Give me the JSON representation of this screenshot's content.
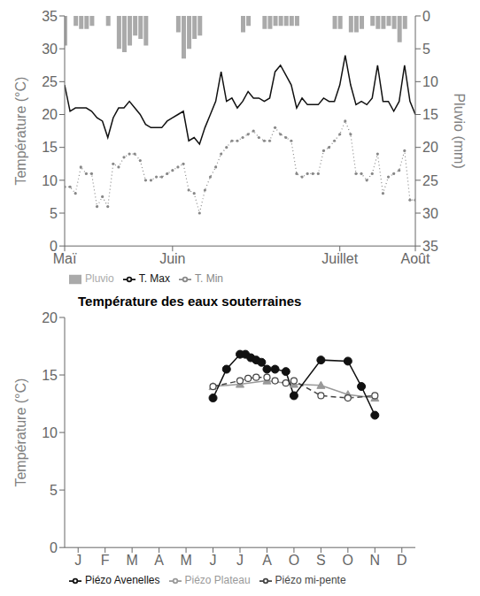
{
  "chart_data": [
    {
      "type": "line",
      "ylabel": "Température (°C)",
      "y2label": "Pluvio (mm)",
      "x": [
        0,
        1,
        2,
        3,
        4,
        5,
        6,
        7,
        8,
        9,
        10,
        11,
        12,
        13,
        14,
        15,
        16,
        17,
        18,
        19,
        20,
        21,
        22,
        23,
        24,
        25,
        26,
        27,
        28,
        29,
        30,
        31,
        32,
        33,
        34,
        35,
        36,
        37,
        38,
        39,
        40,
        41,
        42,
        43,
        44,
        45,
        46,
        47,
        48,
        49,
        50,
        51,
        52,
        53,
        54,
        55,
        56,
        57,
        58,
        59,
        60,
        61,
        62,
        63,
        64,
        65
      ],
      "xlim": [
        0,
        65
      ],
      "xticks": [
        {
          "value": 0,
          "label": "Maï"
        },
        {
          "value": 20,
          "label": "Juin"
        },
        {
          "value": 51,
          "label": "Juillet"
        },
        {
          "value": 65,
          "label": "Août"
        }
      ],
      "ylim": [
        0,
        35
      ],
      "yticks": [
        0,
        5,
        10,
        15,
        20,
        25,
        30,
        35
      ],
      "y2lim": [
        35,
        0
      ],
      "y2ticks": [
        0,
        5,
        10,
        15,
        20,
        25,
        30,
        35
      ],
      "grid": false,
      "legend": "lower left",
      "series": [
        {
          "name": "Pluvio",
          "type": "bar",
          "axis": "y2",
          "color": "#aaaaaa",
          "values": [
            4.5,
            null,
            1.5,
            2.0,
            2.0,
            1.5,
            null,
            null,
            1.5,
            null,
            5.0,
            5.5,
            4.5,
            3.0,
            3.5,
            4.5,
            null,
            null,
            null,
            null,
            null,
            2.5,
            6.5,
            5.0,
            3.5,
            3.0,
            null,
            null,
            null,
            null,
            null,
            null,
            null,
            2.5,
            1.5,
            null,
            null,
            2.0,
            2.0,
            1.5,
            1.5,
            1.5,
            1.5,
            1.5,
            null,
            null,
            null,
            null,
            null,
            null,
            2.0,
            2.0,
            null,
            2.5,
            2.5,
            2.0,
            null,
            1.5,
            2.0,
            2.0,
            1.5,
            2.0,
            4.0,
            2.0,
            null,
            null
          ]
        },
        {
          "name": "T. Min",
          "type": "line",
          "color": "#888888",
          "line_style": "dotted",
          "marker": "dot",
          "values": [
            9.0,
            9.0,
            8.0,
            12.0,
            11.0,
            11.0,
            6.0,
            7.5,
            6.0,
            12.5,
            12.0,
            13.5,
            14.0,
            14.0,
            13.0,
            10.0,
            10.0,
            10.5,
            10.5,
            11.0,
            11.5,
            12.0,
            12.5,
            8.5,
            8.0,
            5.0,
            8.5,
            10.5,
            12.0,
            14.0,
            15.0,
            16.0,
            16.0,
            16.5,
            17.0,
            17.5,
            16.5,
            16.0,
            16.0,
            18.0,
            17.0,
            16.5,
            16.0,
            11.0,
            10.5,
            11.0,
            11.0,
            11.0,
            14.5,
            15.0,
            16.0,
            17.0,
            19.0,
            17.0,
            11.0,
            11.0,
            10.0,
            11.0,
            14.0,
            8.0,
            10.5,
            11.0,
            11.5,
            14.5,
            7.0,
            7.0
          ]
        },
        {
          "name": "T. Max",
          "type": "line",
          "color": "#111111",
          "line_style": "solid",
          "marker": "none",
          "values": [
            24.5,
            20.5,
            21.0,
            21.0,
            21.0,
            20.5,
            19.5,
            19.0,
            16.5,
            19.5,
            21.0,
            21.0,
            22.0,
            21.0,
            20.0,
            18.5,
            18.0,
            18.0,
            18.0,
            19.0,
            19.5,
            20.0,
            20.5,
            16.0,
            16.5,
            15.5,
            18.0,
            20.0,
            22.0,
            26.5,
            22.0,
            22.5,
            21.0,
            22.0,
            23.5,
            22.5,
            22.5,
            22.0,
            22.5,
            26.5,
            27.5,
            26.0,
            24.5,
            21.0,
            22.5,
            21.5,
            21.5,
            21.5,
            22.5,
            22.0,
            22.0,
            24.5,
            29.0,
            24.5,
            21.5,
            22.0,
            21.5,
            22.5,
            27.5,
            22.0,
            22.0,
            20.5,
            22.0,
            27.5,
            22.0,
            20.0
          ]
        }
      ]
    },
    {
      "type": "line",
      "title": "Température des eaux souterraines",
      "ylabel": "Température (°C)",
      "xlim": [
        -0.5,
        12.5
      ],
      "xticks": [
        {
          "value": 0,
          "label": "J"
        },
        {
          "value": 1,
          "label": "F"
        },
        {
          "value": 2,
          "label": "M"
        },
        {
          "value": 3,
          "label": "A"
        },
        {
          "value": 4,
          "label": "M"
        },
        {
          "value": 5,
          "label": "J"
        },
        {
          "value": 6,
          "label": "J"
        },
        {
          "value": 7,
          "label": "A"
        },
        {
          "value": 8,
          "label": "O"
        },
        {
          "value": 9,
          "label": "S"
        },
        {
          "value": 10,
          "label": "O"
        },
        {
          "value": 11,
          "label": "N"
        },
        {
          "value": 12,
          "label": "D"
        }
      ],
      "ylim": [
        0,
        20
      ],
      "yticks": [
        0,
        5,
        10,
        15,
        20
      ],
      "grid": false,
      "legend": "lower left",
      "series": [
        {
          "name": "Piézo Plateau",
          "color": "#999999",
          "line_style": "solid",
          "marker": "triangle",
          "x": [
            5,
            6,
            7,
            8,
            9,
            10,
            11
          ],
          "values": [
            14.0,
            14.2,
            14.5,
            14.2,
            14.1,
            13.3,
            13.0
          ]
        },
        {
          "name": "Piézo mi-pente",
          "color": "#444444",
          "line_style": "dashed",
          "marker": "open-circle",
          "x": [
            5,
            6,
            6.3,
            6.6,
            7,
            7.3,
            7.7,
            8,
            9,
            10,
            11
          ],
          "values": [
            14.0,
            14.5,
            14.7,
            14.8,
            14.8,
            14.5,
            14.3,
            14.5,
            13.2,
            13.0,
            13.2
          ]
        },
        {
          "name": "Piézo Avenelles",
          "color": "#111111",
          "line_style": "solid",
          "marker": "circle",
          "x": [
            5,
            5.5,
            6,
            6.2,
            6.4,
            6.6,
            6.8,
            7,
            7.3,
            7.7,
            8,
            9,
            10,
            10.5,
            11
          ],
          "values": [
            13.0,
            15.5,
            16.8,
            16.8,
            16.5,
            16.3,
            16.1,
            15.5,
            15.5,
            15.3,
            13.2,
            16.3,
            16.2,
            14.0,
            11.5
          ]
        }
      ]
    }
  ]
}
